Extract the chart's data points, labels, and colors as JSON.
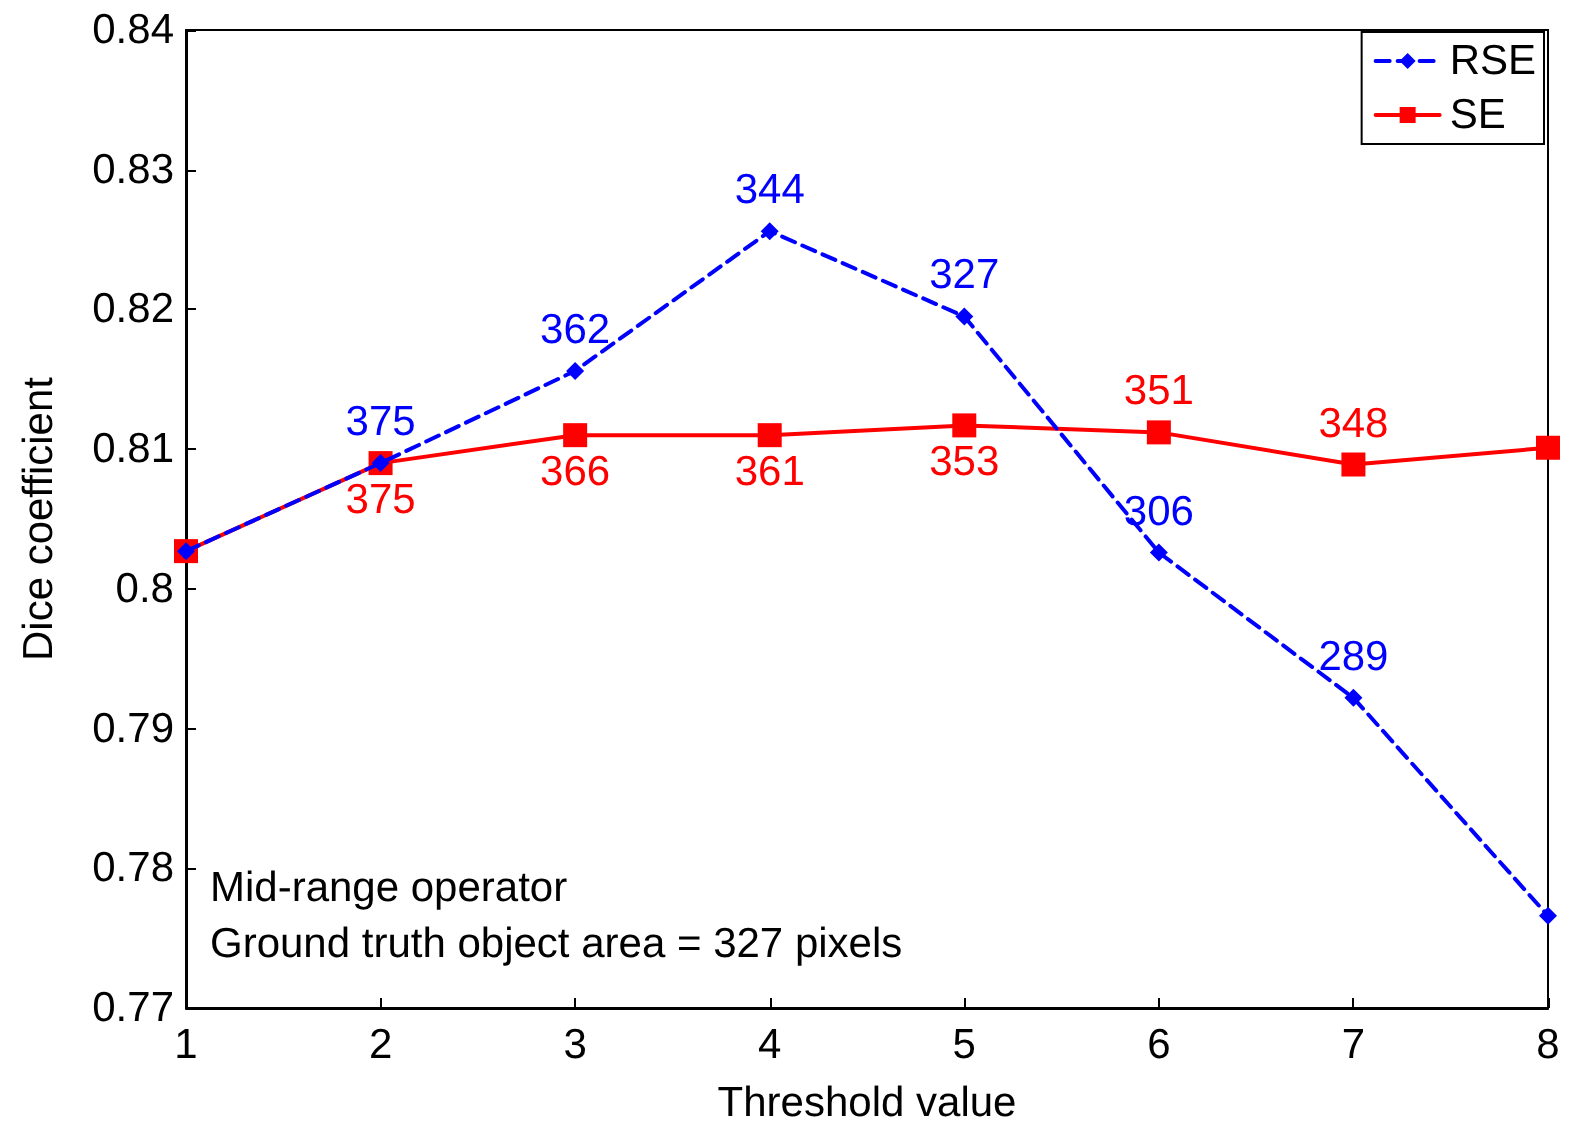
{
  "chart_data": {
    "type": "line",
    "xlabel": "Threshold value",
    "ylabel": "Dice coefficient",
    "x": [
      1,
      2,
      3,
      4,
      5,
      6,
      7,
      8
    ],
    "series": [
      {
        "name": "RSE",
        "color": "#0000ff",
        "marker": "diamond",
        "line_style": "dashed",
        "values": [
          0.8027,
          0.809,
          0.8156,
          0.8256,
          0.8195,
          0.8026,
          0.7922,
          0.7766
        ]
      },
      {
        "name": "SE",
        "color": "#ff0000",
        "marker": "square",
        "line_style": "solid",
        "values": [
          0.8027,
          0.809,
          0.811,
          0.811,
          0.8117,
          0.8112,
          0.8089,
          0.8101
        ]
      }
    ],
    "xlim": [
      1,
      8
    ],
    "xticks": [
      1,
      2,
      3,
      4,
      5,
      6,
      7,
      8
    ],
    "ylim": [
      0.77,
      0.84
    ],
    "yticks": [
      0.77,
      0.78,
      0.79,
      0.8,
      0.81,
      0.82,
      0.83,
      0.84
    ],
    "grid": false,
    "legend": "top right",
    "annotations": [
      {
        "text": "375",
        "x": 2,
        "y": 0.809
      },
      {
        "text": "362",
        "x": 3,
        "y": 0.8156
      },
      {
        "text": "344",
        "x": 4,
        "y": 0.8256
      },
      {
        "text": "327",
        "x": 5,
        "y": 0.8195
      },
      {
        "text": "306",
        "x": 6,
        "y": 0.8026
      },
      {
        "text": "289",
        "x": 7,
        "y": 0.7922
      },
      {
        "text": "375",
        "x": 2,
        "y": 0.809
      },
      {
        "text": "366",
        "x": 3,
        "y": 0.811
      },
      {
        "text": "361",
        "x": 4,
        "y": 0.811
      },
      {
        "text": "353",
        "x": 5,
        "y": 0.8117
      },
      {
        "text": "351",
        "x": 6,
        "y": 0.8112
      },
      {
        "text": "348",
        "x": 7,
        "y": 0.8089
      },
      "Mid-range operator",
      "Ground truth object area = 327 pixels"
    ]
  }
}
